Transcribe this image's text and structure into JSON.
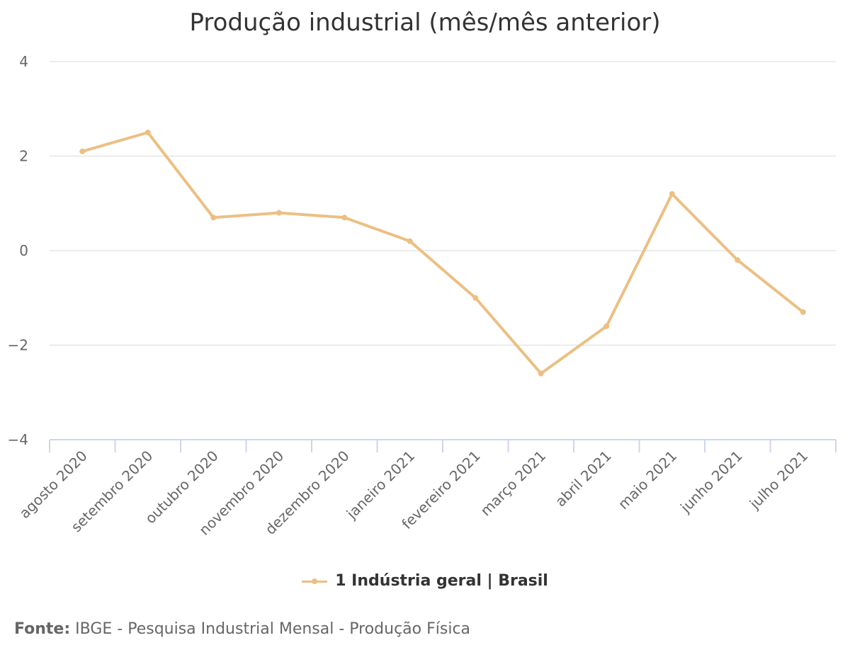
{
  "chart_data": {
    "type": "line",
    "title": "Produção industrial (mês/mês anterior)",
    "categories": [
      "agosto 2020",
      "setembro 2020",
      "outubro 2020",
      "novembro 2020",
      "dezembro 2020",
      "janeiro 2021",
      "fevereiro 2021",
      "março 2021",
      "abril 2021",
      "maio 2021",
      "junho 2021",
      "julho 2021"
    ],
    "series": [
      {
        "name": "1 Indústria geral | Brasil",
        "values": [
          2.1,
          2.5,
          0.7,
          0.8,
          0.7,
          0.2,
          -1.0,
          -2.6,
          -1.6,
          1.2,
          -0.2,
          -1.3
        ]
      }
    ],
    "ylim": [
      -4,
      4
    ],
    "yticks": [
      4,
      2,
      0,
      -2,
      -4
    ],
    "ytick_labels": [
      "4",
      "2",
      "0",
      "−2",
      "−4"
    ],
    "xlabel": "",
    "ylabel": "",
    "grid": true,
    "legend_position": "bottom-center",
    "color": "#ecbf82"
  },
  "source": {
    "label": "Fonte:",
    "text": "IBGE - Pesquisa Industrial Mensal - Produção Física"
  }
}
